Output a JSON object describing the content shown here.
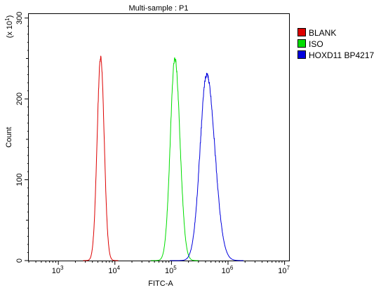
{
  "chart_data": {
    "type": "line",
    "title": "Multi-sample : P1",
    "xlabel": "FITC-A",
    "ylabel": "Count",
    "y_multiplier": "(x 10",
    "y_multiplier_exp": "1",
    "y_multiplier_close": ")",
    "x_scale": "log",
    "xlim": [
      300,
      12000000
    ],
    "ylim": [
      0,
      305
    ],
    "grid": false,
    "legend_position": "right-top",
    "x_ticks": [
      {
        "base": "10",
        "exp": "3",
        "value": 1000
      },
      {
        "base": "10",
        "exp": "4",
        "value": 10000
      },
      {
        "base": "10",
        "exp": "5",
        "value": 100000
      },
      {
        "base": "10",
        "exp": "6",
        "value": 1000000
      },
      {
        "base": "10",
        "exp": "7",
        "value": 10000000
      }
    ],
    "y_ticks": [
      {
        "label": "0",
        "value": 0
      },
      {
        "label": "100",
        "value": 100
      },
      {
        "label": "200",
        "value": 200
      },
      {
        "label": "300",
        "value": 300
      }
    ],
    "series": [
      {
        "name": "BLANK",
        "color": "#dd0000",
        "peak_x": 5600,
        "peak_y": 252,
        "width_log10": 0.062,
        "skew": 0.0
      },
      {
        "name": "ISO",
        "color": "#00dd00",
        "peak_x": 115000,
        "peak_y": 250,
        "width_log10": 0.085,
        "skew": 0.05
      },
      {
        "name": "HOXD11 BP4217",
        "color": "#0000dd",
        "peak_x": 420000,
        "peak_y": 230,
        "width_log10": 0.13,
        "skew": 0.1
      }
    ]
  }
}
